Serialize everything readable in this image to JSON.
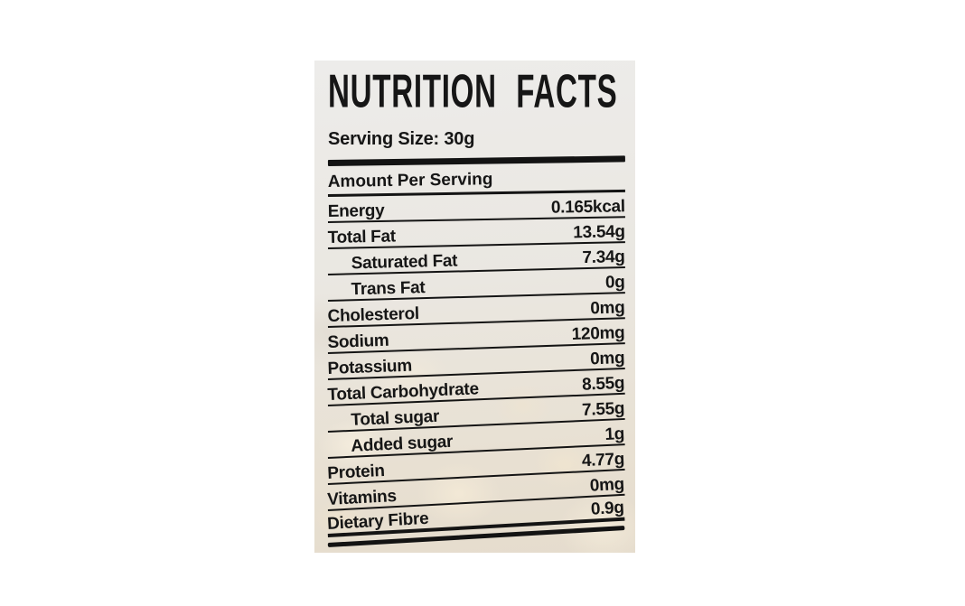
{
  "page": {
    "background_color": "#ffffff"
  },
  "label": {
    "title": "NUTRITION FACTS",
    "serving_size": "Serving Size: 30g",
    "amount_header": "Amount Per Serving",
    "colors": {
      "text": "#161616",
      "panel_background": "#eae6de",
      "rule_color": "#141414"
    },
    "rows": [
      {
        "name": "Energy",
        "value": "0.165kcal",
        "indent": false
      },
      {
        "name": "Total Fat",
        "value": "13.54g",
        "indent": false
      },
      {
        "name": "Saturated Fat",
        "value": "7.34g",
        "indent": true
      },
      {
        "name": "Trans Fat",
        "value": "0g",
        "indent": true
      },
      {
        "name": "Cholesterol",
        "value": "0mg",
        "indent": false
      },
      {
        "name": "Sodium",
        "value": "120mg",
        "indent": false
      },
      {
        "name": "Potassium",
        "value": "0mg",
        "indent": false
      },
      {
        "name": "Total Carbohydrate",
        "value": "8.55g",
        "indent": false
      },
      {
        "name": "Total sugar",
        "value": "7.55g",
        "indent": true
      },
      {
        "name": "Added sugar",
        "value": "1g",
        "indent": true
      },
      {
        "name": "Protein",
        "value": "4.77g",
        "indent": false
      },
      {
        "name": "Vitamins",
        "value": "0mg",
        "indent": false
      },
      {
        "name": "Dietary Fibre",
        "value": "0.9g",
        "indent": false
      }
    ]
  }
}
